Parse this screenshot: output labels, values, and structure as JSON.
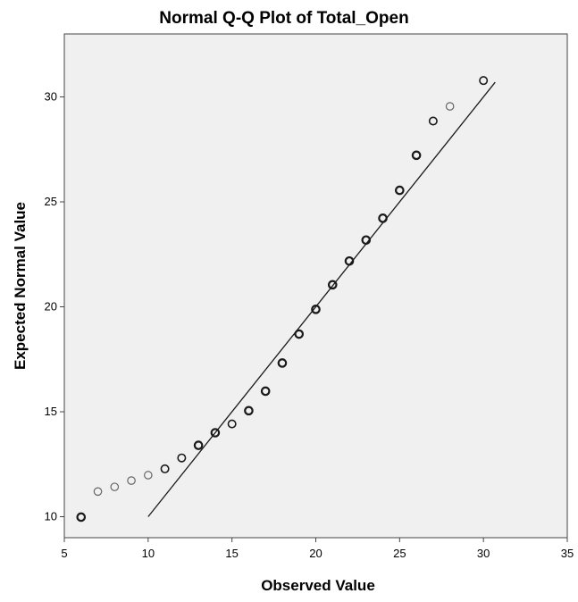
{
  "chart_data": {
    "type": "scatter",
    "title": "Normal Q-Q Plot of Total_Open",
    "xlabel": "Observed Value",
    "ylabel": "Expected Normal Value",
    "xlim": [
      5,
      35
    ],
    "ylim": [
      9,
      33
    ],
    "xticks": [
      5,
      10,
      15,
      20,
      25,
      30,
      35
    ],
    "yticks": [
      10,
      15,
      20,
      25,
      30
    ],
    "grid": false,
    "legend": "none",
    "colors": {
      "plot_bg": "#f0f0f0",
      "frame": "#444444",
      "point_dark": "#1a1a1a",
      "point_light": "#666666",
      "line": "#1a1a1a"
    },
    "series": [
      {
        "points": [
          {
            "x": 6,
            "y": 9.98,
            "emphasis": "dark"
          },
          {
            "x": 7,
            "y": 11.2,
            "emphasis": "light"
          },
          {
            "x": 8,
            "y": 11.42,
            "emphasis": "light"
          },
          {
            "x": 9,
            "y": 11.72,
            "emphasis": "light"
          },
          {
            "x": 10,
            "y": 11.98,
            "emphasis": "light"
          },
          {
            "x": 11,
            "y": 12.28,
            "emphasis": "medium"
          },
          {
            "x": 12,
            "y": 12.8,
            "emphasis": "medium"
          },
          {
            "x": 13,
            "y": 13.4,
            "emphasis": "dark"
          },
          {
            "x": 14,
            "y": 14.0,
            "emphasis": "dark"
          },
          {
            "x": 15,
            "y": 14.42,
            "emphasis": "medium"
          },
          {
            "x": 16,
            "y": 15.05,
            "emphasis": "dark"
          },
          {
            "x": 17,
            "y": 15.98,
            "emphasis": "dark"
          },
          {
            "x": 18,
            "y": 17.32,
            "emphasis": "dark"
          },
          {
            "x": 19,
            "y": 18.7,
            "emphasis": "dark"
          },
          {
            "x": 20,
            "y": 19.88,
            "emphasis": "dark"
          },
          {
            "x": 21,
            "y": 21.05,
            "emphasis": "dark"
          },
          {
            "x": 22,
            "y": 22.18,
            "emphasis": "dark"
          },
          {
            "x": 23,
            "y": 23.18,
            "emphasis": "dark"
          },
          {
            "x": 24,
            "y": 24.22,
            "emphasis": "dark"
          },
          {
            "x": 25,
            "y": 25.55,
            "emphasis": "dark"
          },
          {
            "x": 26,
            "y": 27.22,
            "emphasis": "dark"
          },
          {
            "x": 27,
            "y": 28.85,
            "emphasis": "medium"
          },
          {
            "x": 28,
            "y": 29.55,
            "emphasis": "light"
          },
          {
            "x": 30,
            "y": 30.78,
            "emphasis": "medium"
          }
        ]
      }
    ],
    "reference_line": {
      "from": [
        10,
        10
      ],
      "to": [
        30.7,
        30.7
      ]
    }
  }
}
